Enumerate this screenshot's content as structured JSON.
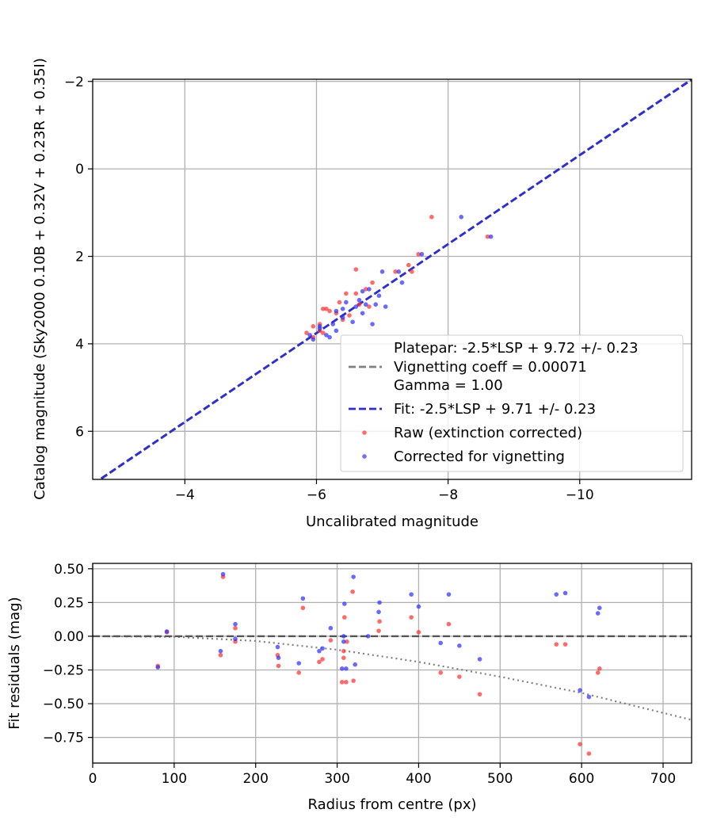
{
  "chart_data": [
    {
      "type": "scatter",
      "name": "calibration",
      "xlabel": "Uncalibrated magnitude",
      "ylabel": "Catalog magnitude (Sky2000 0.10B + 0.32V + 0.23R + 0.35I)",
      "xlim": [
        -2.6,
        -11.7
      ],
      "ylim": [
        7.1,
        -2.05
      ],
      "x_ticks": [
        -4,
        -6,
        -8,
        -10
      ],
      "x_tick_labels": [
        "−4",
        "−6",
        "−8",
        "−10"
      ],
      "y_ticks": [
        -2,
        0,
        2,
        4,
        6
      ],
      "y_tick_labels": [
        "−2",
        "0",
        "2",
        "4",
        "6"
      ],
      "grid": true,
      "legend_position": "lower-right",
      "legend": [
        {
          "style": "dashed",
          "color": "#808080",
          "lines": [
            "Platepar: -2.5*LSP + 9.72 +/- 0.23",
            "Vignetting coeff = 0.00071",
            "Gamma = 1.00"
          ]
        },
        {
          "style": "dashed",
          "color": "#2d2dd4",
          "lines": [
            "Fit: -2.5*LSP + 9.71 +/- 0.23"
          ]
        },
        {
          "style": "marker",
          "color": "#ff3030",
          "lines": [
            "Raw (extinction corrected)"
          ]
        },
        {
          "style": "marker",
          "color": "#3030ff",
          "lines": [
            "Corrected for vignetting"
          ]
        }
      ],
      "lines": [
        {
          "name": "platepar",
          "color": "#808080",
          "x": [
            -2.6,
            -11.7
          ],
          "y": [
            7.22,
            -2.05
          ]
        },
        {
          "name": "fit",
          "color": "#2d2dd4",
          "x": [
            -2.6,
            -11.7
          ],
          "y": [
            7.21,
            -2.04
          ]
        }
      ],
      "series": [
        {
          "name": "Raw (extinction corrected)",
          "color": "#ff3030",
          "points": [
            [
              -7.75,
              1.1
            ],
            [
              -8.6,
              1.55
            ],
            [
              -7.55,
              1.95
            ],
            [
              -7.4,
              2.2
            ],
            [
              -7.2,
              2.35
            ],
            [
              -7.45,
              2.35
            ],
            [
              -6.6,
              2.3
            ],
            [
              -6.85,
              2.6
            ],
            [
              -6.45,
              2.85
            ],
            [
              -6.6,
              2.85
            ],
            [
              -6.75,
              2.75
            ],
            [
              -6.35,
              3.05
            ],
            [
              -6.15,
              3.2
            ],
            [
              -6.1,
              3.2
            ],
            [
              -6.2,
              3.25
            ],
            [
              -6.65,
              3.1
            ],
            [
              -6.8,
              3.15
            ],
            [
              -6.3,
              3.3
            ],
            [
              -6.5,
              3.35
            ],
            [
              -6.4,
              3.45
            ],
            [
              -6.05,
              3.55
            ],
            [
              -5.95,
              3.6
            ],
            [
              -6.1,
              3.75
            ],
            [
              -5.85,
              3.75
            ],
            [
              -5.95,
              3.85
            ],
            [
              -6.05,
              3.7
            ]
          ]
        },
        {
          "name": "Corrected for vignetting",
          "color": "#3030ff",
          "points": [
            [
              -8.2,
              1.1
            ],
            [
              -8.65,
              1.55
            ],
            [
              -7.6,
              1.95
            ],
            [
              -7.25,
              2.35
            ],
            [
              -7.0,
              2.35
            ],
            [
              -7.3,
              2.6
            ],
            [
              -6.8,
              2.75
            ],
            [
              -6.7,
              2.8
            ],
            [
              -6.95,
              2.9
            ],
            [
              -6.65,
              3.0
            ],
            [
              -6.45,
              3.05
            ],
            [
              -6.75,
              3.1
            ],
            [
              -6.9,
              3.1
            ],
            [
              -7.05,
              3.15
            ],
            [
              -6.6,
              3.15
            ],
            [
              -6.4,
              3.2
            ],
            [
              -6.3,
              3.25
            ],
            [
              -6.7,
              3.3
            ],
            [
              -6.4,
              3.4
            ],
            [
              -6.55,
              3.5
            ],
            [
              -6.85,
              3.55
            ],
            [
              -6.25,
              3.55
            ],
            [
              -6.05,
              3.6
            ],
            [
              -6.3,
              3.7
            ],
            [
              -5.9,
              3.8
            ],
            [
              -6.15,
              3.8
            ],
            [
              -5.95,
              3.9
            ],
            [
              -6.2,
              3.85
            ],
            [
              -6.05,
              3.65
            ]
          ]
        }
      ]
    },
    {
      "type": "scatter",
      "name": "residuals",
      "xlabel": "Radius from centre (px)",
      "ylabel": "Fit residuals (mag)",
      "xlim": [
        0,
        735
      ],
      "ylim": [
        -0.94,
        0.54
      ],
      "x_ticks": [
        0,
        100,
        200,
        300,
        400,
        500,
        600,
        700
      ],
      "x_tick_labels": [
        "0",
        "100",
        "200",
        "300",
        "400",
        "500",
        "600",
        "700"
      ],
      "y_ticks": [
        0.5,
        0.25,
        0.0,
        -0.25,
        -0.5,
        -0.75
      ],
      "y_tick_labels": [
        "0.50",
        "0.25",
        "0.00",
        "−0.25",
        "−0.50",
        "−0.75"
      ],
      "grid": true,
      "reference_line": {
        "y": 0.0,
        "color": "#555555",
        "style": "dashed"
      },
      "vignetting_curve": {
        "color": "#808080",
        "style": "dotted",
        "x": [
          0,
          100,
          200,
          300,
          400,
          500,
          600,
          735
        ],
        "y": [
          0.0,
          -0.004,
          -0.035,
          -0.1,
          -0.19,
          -0.3,
          -0.42,
          -0.62
        ]
      },
      "series": [
        {
          "name": "Raw (extinction corrected)",
          "color": "#ff3030",
          "points": [
            [
              80,
              -0.22
            ],
            [
              91,
              0.03
            ],
            [
              157,
              -0.14
            ],
            [
              160,
              0.44
            ],
            [
              175,
              -0.04
            ],
            [
              175,
              0.06
            ],
            [
              227,
              -0.14
            ],
            [
              228,
              -0.22
            ],
            [
              258,
              0.21
            ],
            [
              253,
              -0.27
            ],
            [
              278,
              -0.19
            ],
            [
              282,
              -0.17
            ],
            [
              292,
              -0.03
            ],
            [
              306,
              -0.34
            ],
            [
              308,
              -0.16
            ],
            [
              308,
              -0.11
            ],
            [
              309,
              0.14
            ],
            [
              311,
              -0.34
            ],
            [
              312,
              -0.04
            ],
            [
              319,
              0.33
            ],
            [
              320,
              -0.33
            ],
            [
              351,
              0.04
            ],
            [
              352,
              0.11
            ],
            [
              391,
              0.14
            ],
            [
              400,
              0.03
            ],
            [
              427,
              -0.27
            ],
            [
              437,
              0.09
            ],
            [
              450,
              -0.3
            ],
            [
              475,
              -0.43
            ],
            [
              569,
              -0.06
            ],
            [
              580,
              -0.06
            ],
            [
              598,
              -0.8
            ],
            [
              609,
              -0.87
            ],
            [
              620,
              -0.27
            ],
            [
              622,
              -0.24
            ]
          ]
        },
        {
          "name": "Corrected for vignetting",
          "color": "#3030ff",
          "points": [
            [
              80,
              -0.23
            ],
            [
              91,
              0.035
            ],
            [
              157,
              -0.11
            ],
            [
              160,
              0.46
            ],
            [
              175,
              0.09
            ],
            [
              175,
              -0.02
            ],
            [
              227,
              -0.08
            ],
            [
              228,
              -0.16
            ],
            [
              258,
              0.28
            ],
            [
              253,
              -0.2
            ],
            [
              278,
              -0.11
            ],
            [
              282,
              -0.09
            ],
            [
              292,
              0.06
            ],
            [
              306,
              -0.24
            ],
            [
              308,
              -0.04
            ],
            [
              308,
              0.0
            ],
            [
              309,
              0.24
            ],
            [
              311,
              -0.24
            ],
            [
              320,
              0.44
            ],
            [
              322,
              -0.21
            ],
            [
              338,
              0.0
            ],
            [
              351,
              0.18
            ],
            [
              352,
              0.25
            ],
            [
              391,
              0.31
            ],
            [
              400,
              0.22
            ],
            [
              427,
              -0.05
            ],
            [
              437,
              0.31
            ],
            [
              450,
              -0.07
            ],
            [
              475,
              -0.17
            ],
            [
              569,
              0.31
            ],
            [
              580,
              0.32
            ],
            [
              598,
              -0.4
            ],
            [
              609,
              -0.45
            ],
            [
              620,
              0.17
            ],
            [
              622,
              0.21
            ]
          ]
        }
      ]
    }
  ]
}
